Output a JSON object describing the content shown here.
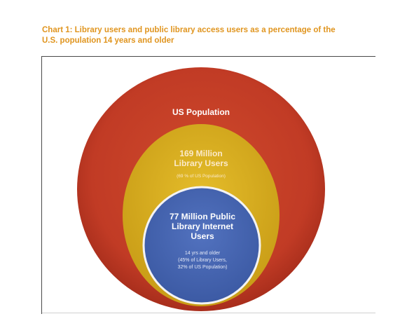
{
  "title_line1": "Chart 1: Library users and public library access users as a percentage of the",
  "title_line2": "U.S. population 14 years and older",
  "outer": {
    "label": "US Population",
    "color": "#c13b25"
  },
  "middle": {
    "label_line1": "169 Million",
    "label_line2": "Library Users",
    "note": "(69 % of US Population)",
    "color": "#d8ae1e"
  },
  "inner": {
    "label_line1": "77  Million Public",
    "label_line2": "Library Internet",
    "label_line3": "Users",
    "note_line1": "14 yrs and older",
    "note_line2": "(45% of Library Users,",
    "note_line3": "32% of US Population)",
    "color": "#4667b2"
  }
}
